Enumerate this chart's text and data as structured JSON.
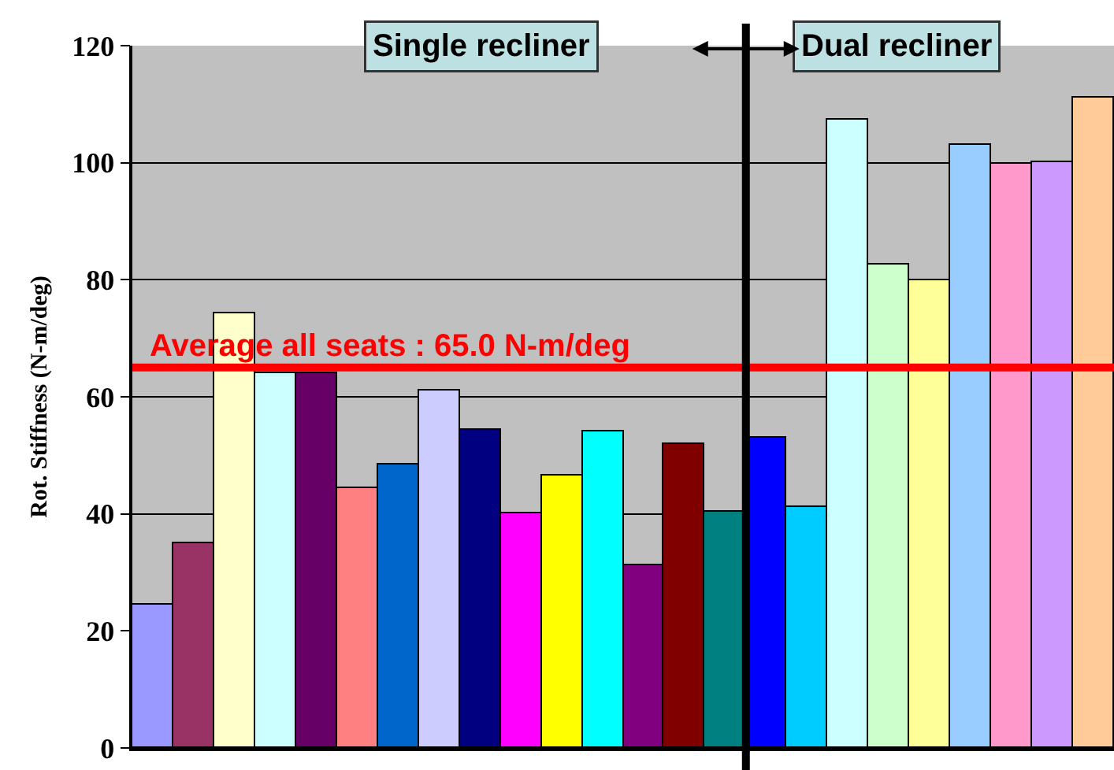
{
  "chart_data": {
    "type": "bar",
    "ylabel": "Rot. Stiffness (N-m/deg)",
    "categories": [
      null,
      null,
      null,
      null,
      null,
      null,
      null,
      null,
      null,
      null,
      null,
      null,
      null,
      null,
      null,
      null,
      null,
      null,
      null,
      null,
      null,
      null,
      null,
      null
    ],
    "values": [
      24.4,
      35,
      74.2,
      64,
      64,
      44.3,
      48.4,
      61.2,
      54.3,
      40.1,
      46.5,
      54.2,
      31.3,
      51.8,
      40.3,
      53.1,
      41.2,
      107.4,
      82.6,
      79.9,
      103.1,
      99.8,
      100.2,
      111.2
    ],
    "colors": [
      "#9999ff",
      "#993366",
      "#ffffcc",
      "#ccffff",
      "#660066",
      "#ff8080",
      "#0066cc",
      "#ccccff",
      "#000080",
      "#ff00ff",
      "#ffff00",
      "#00ffff",
      "#800080",
      "#800000",
      "#008080",
      "#0000ff",
      "#00ccff",
      "#ccffff",
      "#ccffcc",
      "#ffff99",
      "#99ccff",
      "#ff99cc",
      "#cc99ff",
      "#ffcc99"
    ],
    "ylim": [
      0,
      120
    ],
    "yticks": [
      0,
      20,
      40,
      60,
      80,
      100,
      120
    ],
    "grid": "y",
    "ref_lines": [
      {
        "axis": "y",
        "value": 65,
        "label": "Average all seats : 65.0 N-m/deg",
        "color": "#ff0000"
      }
    ],
    "annotations": [
      "Single recliner",
      "Dual recliner"
    ]
  }
}
